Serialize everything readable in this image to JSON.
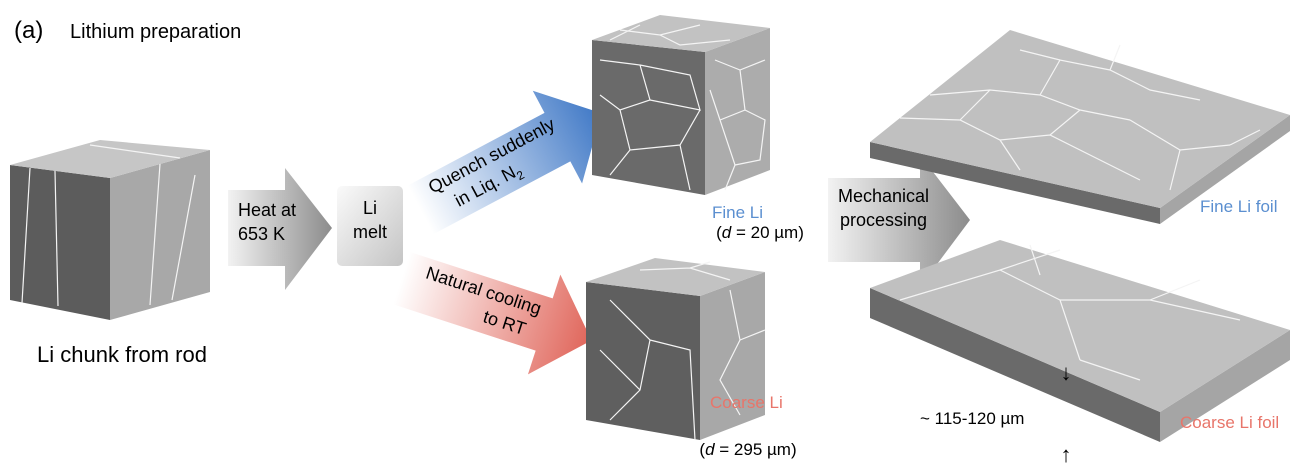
{
  "header": {
    "label": "(a)",
    "title": "Lithium preparation"
  },
  "chunk": {
    "caption": "Li chunk from rod"
  },
  "heat": {
    "lines": [
      "Heat at",
      "653 K"
    ]
  },
  "melt": {
    "lines": [
      "Li",
      "melt"
    ]
  },
  "quench": {
    "lines": [
      "Quench suddenly",
      "in Liq. N"
    ],
    "subscript": "2"
  },
  "cooling": {
    "lines": [
      "Natural cooling",
      "to RT"
    ]
  },
  "fine": {
    "name": "Fine Li",
    "size": {
      "open": "(",
      "symbol": "d",
      "rest": " = 20 µm)"
    }
  },
  "coarse": {
    "name": "Coarse Li",
    "size": {
      "open": "(",
      "symbol": "d",
      "rest": " = 295 µm)"
    }
  },
  "mechanical": {
    "lines": [
      "Mechanical",
      "processing"
    ]
  },
  "foils": {
    "fine": "Fine Li foil",
    "coarse": "Coarse Li foil",
    "thickness": "~ 115-120 µm",
    "arrow_down": "↓",
    "arrow_up": "↑"
  }
}
